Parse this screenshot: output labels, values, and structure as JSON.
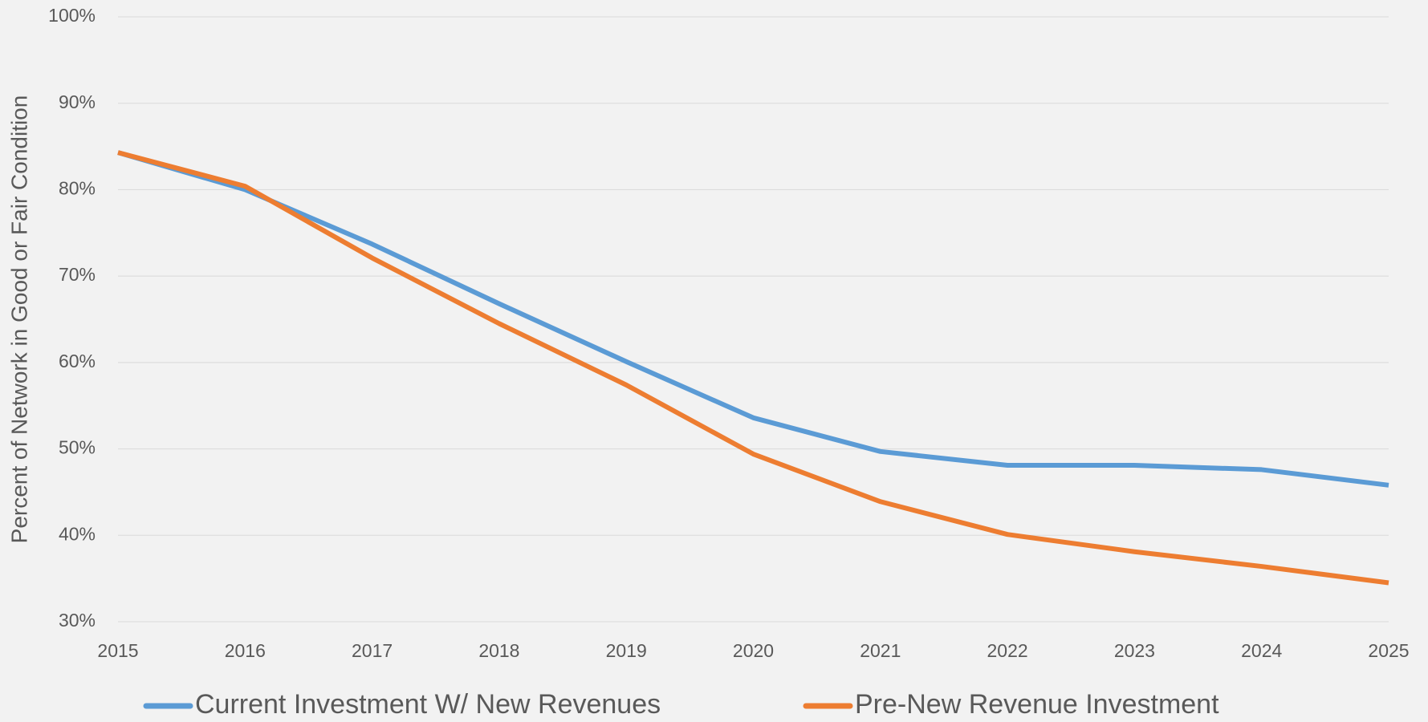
{
  "chart_data": {
    "type": "line",
    "y_label": "Percent of Network in Good or Fair Condition",
    "x": [
      2015,
      2016,
      2017,
      2018,
      2019,
      2020,
      2021,
      2022,
      2023,
      2024,
      2025
    ],
    "series": [
      {
        "name": "Current Investment W/ New Revenues",
        "color": "#5b9bd5",
        "values": [
          84.3,
          80.0,
          73.7,
          66.8,
          60.1,
          53.6,
          49.7,
          48.1,
          48.1,
          47.6,
          45.8
        ]
      },
      {
        "name": "Pre-New Revenue Investment",
        "color": "#ed7d31",
        "values": [
          84.3,
          80.4,
          72.1,
          64.5,
          57.4,
          49.4,
          43.9,
          40.1,
          38.1,
          36.4,
          34.5
        ]
      }
    ],
    "xlim": [
      2015,
      2025
    ],
    "xticks": [
      2015,
      2016,
      2017,
      2018,
      2019,
      2020,
      2021,
      2022,
      2023,
      2024,
      2025
    ],
    "ylim": [
      30,
      100
    ],
    "yticks": [
      {
        "value": 30,
        "label": "30%"
      },
      {
        "value": 40,
        "label": "40%"
      },
      {
        "value": 50,
        "label": "50%"
      },
      {
        "value": 60,
        "label": "60%"
      },
      {
        "value": 70,
        "label": "70%"
      },
      {
        "value": 80,
        "label": "80%"
      },
      {
        "value": 90,
        "label": "90%"
      },
      {
        "value": 100,
        "label": "100%"
      }
    ],
    "grid": true,
    "legend": "bottom"
  }
}
